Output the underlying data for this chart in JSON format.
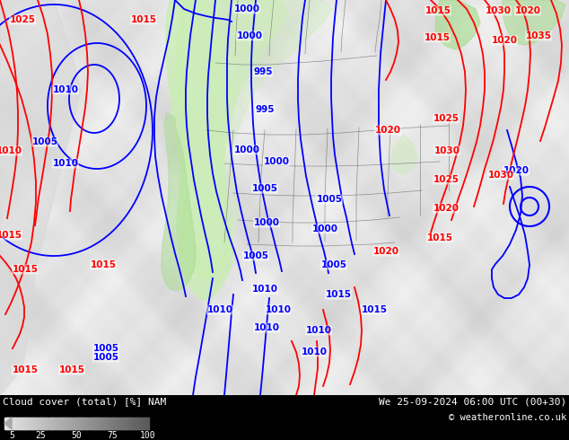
{
  "title_left": "Cloud cover (total) [%] NAM",
  "title_right": "We 25-09-2024 06:00 UTC (00+30)",
  "copyright": "© weatheronline.co.uk",
  "colorbar_ticks": [
    5,
    25,
    50,
    75,
    100
  ],
  "ocean_color": "#e8e8e8",
  "land_color": "#d0d0d0",
  "cloud_green": "#c8eeb0",
  "cloud_green2": "#a8dc90",
  "figsize": [
    6.34,
    4.9
  ],
  "dpi": 100,
  "bottom_bar_color": "#000000",
  "blue_line": "#0000ff",
  "red_line": "#ff0000",
  "label_fontsize": 7.5,
  "blue_labels": [
    [
      73,
      165,
      "1010"
    ],
    [
      50,
      215,
      "1005"
    ],
    [
      73,
      270,
      "1010"
    ],
    [
      108,
      32,
      "1005"
    ],
    [
      200,
      45,
      "1005"
    ],
    [
      265,
      30,
      "1000"
    ],
    [
      280,
      75,
      "1000"
    ],
    [
      290,
      115,
      "995"
    ],
    [
      290,
      165,
      "995"
    ],
    [
      270,
      210,
      "1000"
    ],
    [
      305,
      225,
      "1000"
    ],
    [
      295,
      270,
      "1005"
    ],
    [
      365,
      255,
      "1005"
    ],
    [
      295,
      305,
      "1000"
    ],
    [
      360,
      300,
      "1000"
    ],
    [
      285,
      340,
      "1005"
    ],
    [
      370,
      330,
      "1005"
    ],
    [
      290,
      370,
      "1010"
    ],
    [
      310,
      395,
      "1010"
    ],
    [
      290,
      410,
      "1010"
    ],
    [
      355,
      410,
      "1010"
    ],
    [
      350,
      430,
      "1010"
    ],
    [
      240,
      390,
      "1010"
    ],
    [
      375,
      380,
      "1015"
    ],
    [
      415,
      350,
      "1015"
    ],
    [
      615,
      300,
      "1020"
    ]
  ],
  "red_labels": [
    [
      20,
      15,
      "1025"
    ],
    [
      155,
      15,
      "1015"
    ],
    [
      10,
      165,
      "1010"
    ],
    [
      10,
      320,
      "1015"
    ],
    [
      25,
      390,
      "1015"
    ],
    [
      115,
      385,
      "1015"
    ],
    [
      490,
      15,
      "1015"
    ],
    [
      490,
      65,
      "1015"
    ],
    [
      550,
      15,
      "1030"
    ],
    [
      570,
      60,
      "1020"
    ],
    [
      590,
      15,
      "1020"
    ],
    [
      605,
      55,
      "1035"
    ],
    [
      430,
      150,
      "1020"
    ],
    [
      500,
      130,
      "1025"
    ],
    [
      500,
      175,
      "1030"
    ],
    [
      500,
      200,
      "1025"
    ],
    [
      500,
      240,
      "1020"
    ],
    [
      555,
      200,
      "1030"
    ],
    [
      430,
      320,
      "1020"
    ],
    [
      495,
      360,
      "1015"
    ],
    [
      75,
      430,
      "1015"
    ],
    [
      25,
      435,
      "1015"
    ]
  ]
}
